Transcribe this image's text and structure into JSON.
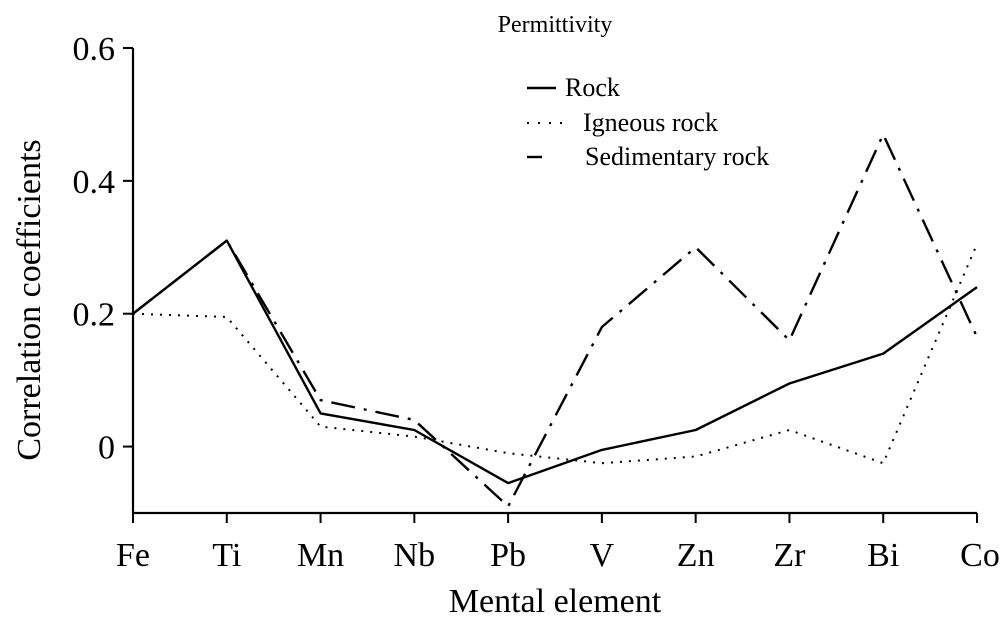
{
  "chart_data": {
    "type": "line",
    "title": "Permittivity",
    "xlabel": "Mental element",
    "ylabel": "Correlation coefficients",
    "categories": [
      "Fe",
      "Ti",
      "Mn",
      "Nb",
      "Pb",
      "V",
      "Zn",
      "Zr",
      "Bi",
      "Co"
    ],
    "ylim": [
      -0.1,
      0.6
    ],
    "yticks": [
      0,
      0.2,
      0.4,
      0.6
    ],
    "ytick_labels": [
      "0",
      "0.2",
      "0.4",
      "0.6"
    ],
    "grid": false,
    "legend_position": "top-right",
    "series": [
      {
        "name": "Rock",
        "style": "solid",
        "values": [
          0.2,
          0.31,
          0.05,
          0.025,
          -0.055,
          -0.005,
          0.025,
          0.095,
          0.14,
          0.24
        ]
      },
      {
        "name": "Igneous rock",
        "style": "dotted",
        "values": [
          0.2,
          0.195,
          0.03,
          0.015,
          -0.01,
          -0.025,
          -0.015,
          0.025,
          -0.025,
          0.305
        ]
      },
      {
        "name": "Sedimentary rock",
        "style": "dashdot",
        "values": [
          0.2,
          0.31,
          0.07,
          0.04,
          -0.09,
          0.18,
          0.3,
          0.16,
          0.47,
          0.165
        ]
      }
    ]
  }
}
